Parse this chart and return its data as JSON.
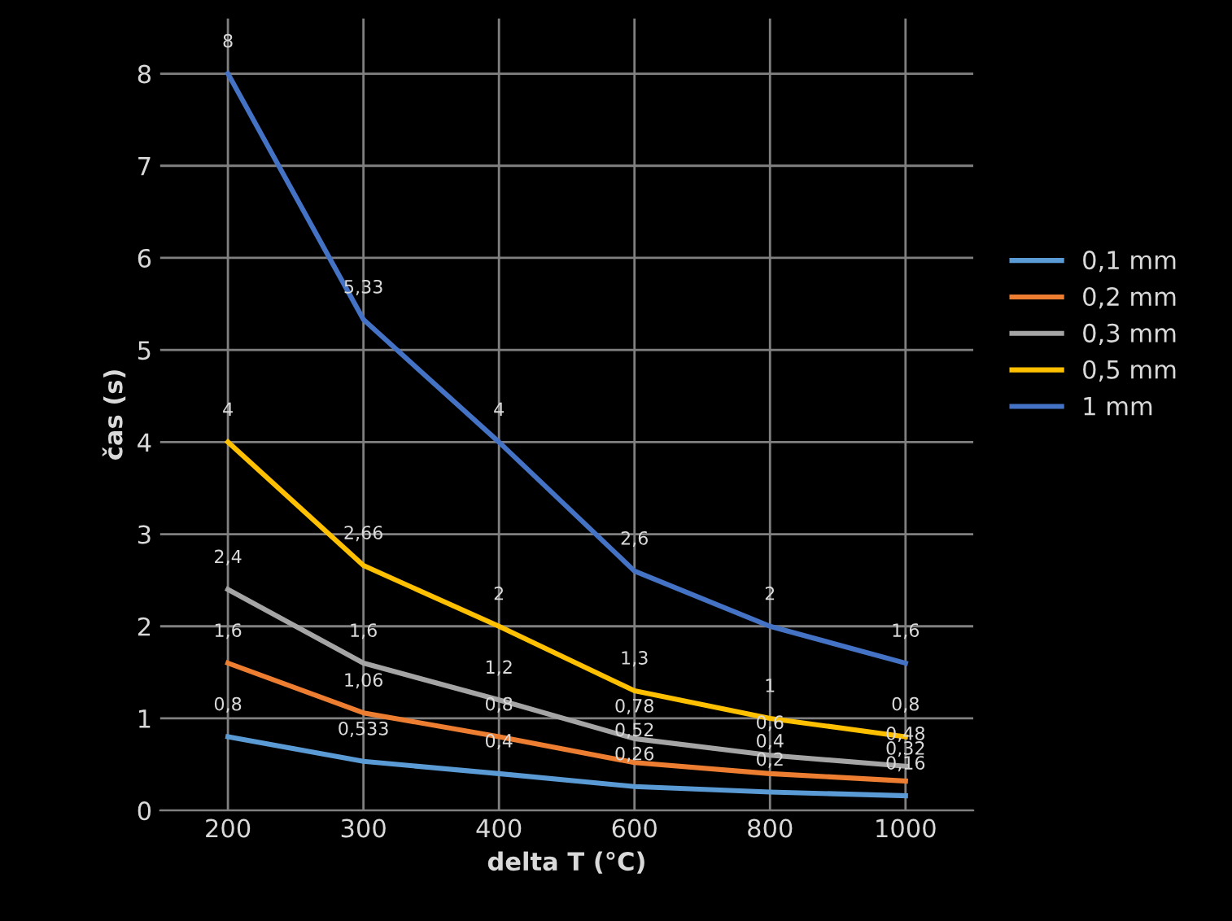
{
  "chart_data": {
    "type": "line",
    "xlabel": "delta T (°C)",
    "ylabel": "čas (s)",
    "categories": [
      "200",
      "300",
      "400",
      "600",
      "800",
      "1000"
    ],
    "series": [
      {
        "name": "0,1 mm",
        "color": "#5b9bd5",
        "values": [
          0.8,
          0.533,
          0.4,
          0.26,
          0.2,
          0.16
        ],
        "value_labels": [
          "0,8",
          "0,533",
          "0,4",
          "0,26",
          "0,2",
          "0,16"
        ]
      },
      {
        "name": "0,2 mm",
        "color": "#ed7d31",
        "values": [
          1.6,
          1.06,
          0.8,
          0.52,
          0.4,
          0.32
        ],
        "value_labels": [
          "1,6",
          "1,06",
          "0,8",
          "0,52",
          "0,4",
          "0,32"
        ]
      },
      {
        "name": "0,3 mm",
        "color": "#a5a5a5",
        "values": [
          2.4,
          1.6,
          1.2,
          0.78,
          0.6,
          0.48
        ],
        "value_labels": [
          "2,4",
          "1,6",
          "1,2",
          "0,78",
          "0,6",
          "0,48"
        ]
      },
      {
        "name": "0,5 mm",
        "color": "#ffc000",
        "values": [
          4,
          2.66,
          2,
          1.3,
          1,
          0.8
        ],
        "value_labels": [
          "4",
          "2,66",
          "2",
          "1,3",
          "1",
          "0,8"
        ]
      },
      {
        "name": "1 mm",
        "color": "#4472c4",
        "values": [
          8,
          5.33,
          4,
          2.6,
          2,
          1.6
        ],
        "value_labels": [
          "8",
          "5,33",
          "4",
          "2,6",
          "2",
          "1,6"
        ]
      }
    ],
    "ylim": [
      0,
      8.6
    ],
    "yticks": [
      0,
      1,
      2,
      3,
      4,
      5,
      6,
      7,
      8
    ],
    "grid": true,
    "legend": "right",
    "marker": "none",
    "line_style": "solid"
  }
}
